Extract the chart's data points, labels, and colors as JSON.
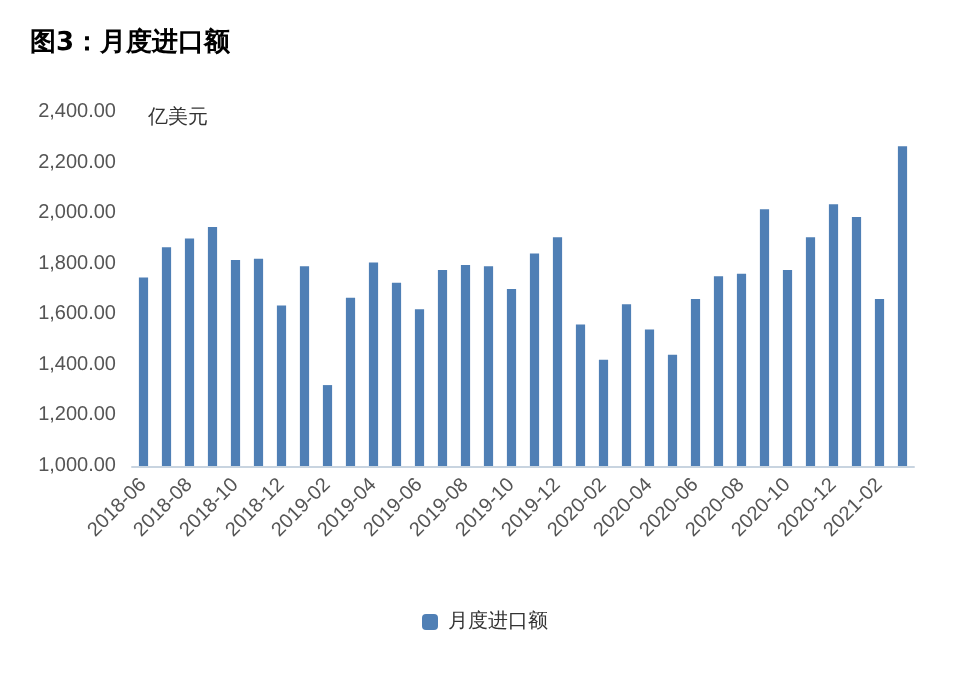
{
  "chart_data": {
    "type": "bar",
    "title": "图3：月度进口额",
    "ylabel": "亿美元",
    "categories": [
      "2018-06",
      null,
      "2018-08",
      null,
      "2018-10",
      null,
      "2018-12",
      null,
      "2019-02",
      null,
      "2019-04",
      null,
      "2019-06",
      null,
      "2019-08",
      null,
      "2019-10",
      null,
      "2019-12",
      null,
      "2020-02",
      null,
      "2020-04",
      null,
      "2020-06",
      null,
      "2020-08",
      null,
      "2020-10",
      null,
      "2020-12",
      null,
      "2021-02",
      null
    ],
    "series": [
      {
        "name": "月度进口额",
        "color": "#4f7fb5",
        "values": [
          1745,
          1865,
          1900,
          1945,
          1815,
          1820,
          1635,
          1790,
          1320,
          1665,
          1805,
          1725,
          1620,
          1775,
          1795,
          1790,
          1700,
          1840,
          1905,
          1560,
          1420,
          1640,
          1540,
          1440,
          1660,
          1750,
          1760,
          2015,
          1775,
          1905,
          2035,
          1985,
          1660,
          2265
        ]
      }
    ],
    "ylim": [
      1000,
      2400
    ],
    "yticks": [
      {
        "value": 1000,
        "label": "1,000.00"
      },
      {
        "value": 1200,
        "label": "1,200.00"
      },
      {
        "value": 1400,
        "label": "1,400.00"
      },
      {
        "value": 1600,
        "label": "1,600.00"
      },
      {
        "value": 1800,
        "label": "1,800.00"
      },
      {
        "value": 2000,
        "label": "2,000.00"
      },
      {
        "value": 2200,
        "label": "2,200.00"
      },
      {
        "value": 2400,
        "label": "2,400.00"
      }
    ],
    "grid": false,
    "legend": "bottom"
  }
}
